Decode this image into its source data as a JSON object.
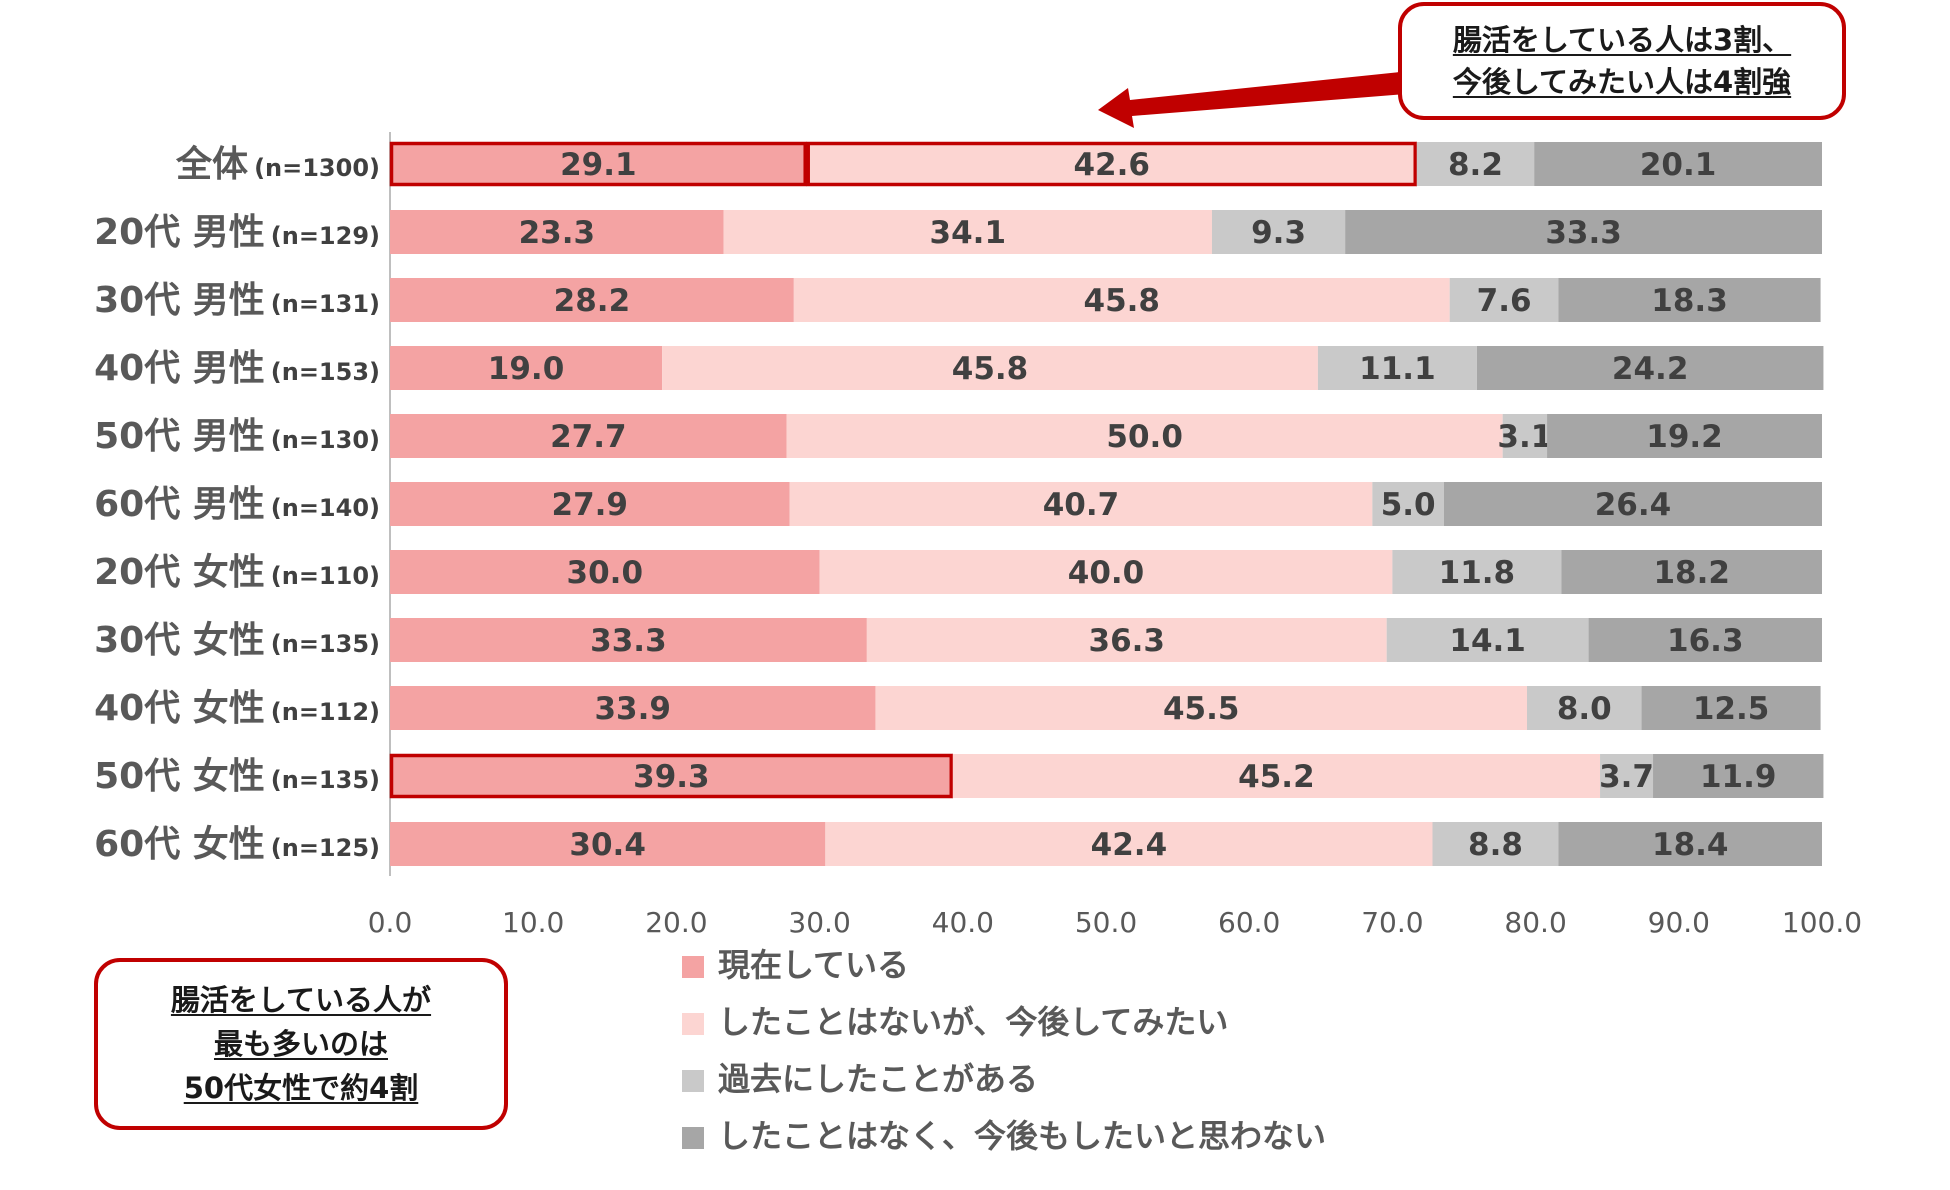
{
  "chart_data": {
    "type": "bar",
    "orientation": "horizontal",
    "stacked": true,
    "categories": [
      {
        "label": "全体",
        "n": "(n=1300)"
      },
      {
        "label": "20代 男性",
        "n": "(n=129)"
      },
      {
        "label": "30代 男性",
        "n": "(n=131)"
      },
      {
        "label": "40代 男性",
        "n": "(n=153)"
      },
      {
        "label": "50代 男性",
        "n": "(n=130)"
      },
      {
        "label": "60代 男性",
        "n": "(n=140)"
      },
      {
        "label": "20代 女性",
        "n": "(n=110)"
      },
      {
        "label": "30代 女性",
        "n": "(n=135)"
      },
      {
        "label": "40代 女性",
        "n": "(n=112)"
      },
      {
        "label": "50代 女性",
        "n": "(n=135)"
      },
      {
        "label": "60代 女性",
        "n": "(n=125)"
      }
    ],
    "series": [
      {
        "name": "現在している",
        "color": "#f4a3a3",
        "values": [
          29.1,
          23.3,
          28.2,
          19.0,
          27.7,
          27.9,
          30.0,
          33.3,
          33.9,
          39.3,
          30.4
        ]
      },
      {
        "name": "したことはないが、今後してみたい",
        "color": "#fcd5d2",
        "values": [
          42.6,
          34.1,
          45.8,
          45.8,
          50.0,
          40.7,
          40.0,
          36.3,
          45.5,
          45.2,
          42.4
        ]
      },
      {
        "name": "過去にしたことがある",
        "color": "#c9c9c9",
        "values": [
          8.2,
          9.3,
          7.6,
          11.1,
          3.1,
          5.0,
          11.8,
          14.1,
          8.0,
          3.7,
          8.8
        ]
      },
      {
        "name": "したことはなく、今後もしたいと思わない",
        "color": "#a6a6a6",
        "values": [
          20.1,
          33.3,
          18.3,
          24.2,
          19.2,
          26.4,
          18.2,
          16.3,
          12.5,
          11.9,
          18.4
        ]
      }
    ],
    "xlim": [
      0,
      100
    ],
    "xticks": [
      "0.0",
      "10.0",
      "20.0",
      "30.0",
      "40.0",
      "50.0",
      "60.0",
      "70.0",
      "80.0",
      "90.0",
      "100.0"
    ],
    "legend_position": "bottom-center",
    "highlights": [
      {
        "category": 0,
        "series": 0
      },
      {
        "category": 0,
        "series": 1
      },
      {
        "category": 9,
        "series": 0
      }
    ],
    "highlight_color": "#c00000"
  },
  "callouts": {
    "top": [
      "腸活をしている人は3割、",
      "今後してみたい人は4割強"
    ],
    "bottom": [
      "腸活をしている人が",
      "最も多いのは",
      "50代女性で約4割"
    ]
  }
}
